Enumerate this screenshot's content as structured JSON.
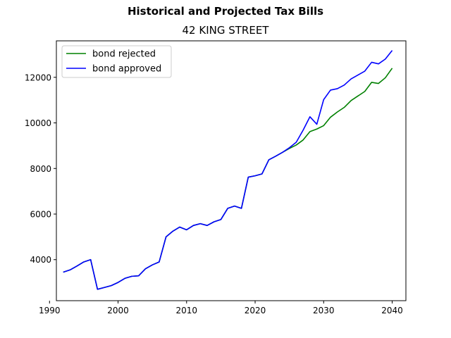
{
  "chart_data": {
    "type": "line",
    "title": "Historical and Projected Tax Bills",
    "subtitle": "42 KING STREET",
    "xlabel": "",
    "ylabel": "",
    "xlim": [
      1991,
      2042
    ],
    "ylim": [
      2200,
      13600
    ],
    "xticks": [
      1990,
      2000,
      2010,
      2020,
      2030,
      2040
    ],
    "yticks": [
      4000,
      6000,
      8000,
      10000,
      12000
    ],
    "xtick_labels": [
      "1990",
      "2000",
      "2010",
      "2020",
      "2030",
      "2040"
    ],
    "ytick_labels": [
      "4000",
      "6000",
      "8000",
      "10000",
      "12000"
    ],
    "grid": false,
    "legend_position": "top-left",
    "series": [
      {
        "name": "bond rejected",
        "color": "#008000",
        "x": [
          1992,
          1993,
          1994,
          1995,
          1996,
          1997,
          1998,
          1999,
          2000,
          2001,
          2002,
          2003,
          2004,
          2005,
          2006,
          2007,
          2008,
          2009,
          2010,
          2011,
          2012,
          2013,
          2014,
          2015,
          2016,
          2017,
          2018,
          2019,
          2020,
          2021,
          2022,
          2023,
          2024,
          2025,
          2026,
          2027,
          2028,
          2029,
          2030,
          2031,
          2032,
          2033,
          2034,
          2035,
          2036,
          2037,
          2038,
          2039,
          2040
        ],
        "y": [
          3450,
          3550,
          3720,
          3900,
          4000,
          2700,
          2780,
          2860,
          3000,
          3180,
          3270,
          3290,
          3600,
          3770,
          3900,
          5000,
          5250,
          5430,
          5310,
          5500,
          5580,
          5500,
          5660,
          5760,
          6250,
          6350,
          6250,
          7620,
          7680,
          7760,
          8380,
          8540,
          8710,
          8880,
          9030,
          9250,
          9620,
          9730,
          9880,
          10250,
          10480,
          10680,
          10980,
          11180,
          11380,
          11780,
          11730,
          11980,
          12400
        ]
      },
      {
        "name": "bond approved",
        "color": "#0000ff",
        "x": [
          1992,
          1993,
          1994,
          1995,
          1996,
          1997,
          1998,
          1999,
          2000,
          2001,
          2002,
          2003,
          2004,
          2005,
          2006,
          2007,
          2008,
          2009,
          2010,
          2011,
          2012,
          2013,
          2014,
          2015,
          2016,
          2017,
          2018,
          2019,
          2020,
          2021,
          2022,
          2023,
          2024,
          2025,
          2026,
          2027,
          2028,
          2029,
          2030,
          2031,
          2032,
          2033,
          2034,
          2035,
          2036,
          2037,
          2038,
          2039,
          2040
        ],
        "y": [
          3450,
          3550,
          3720,
          3900,
          4000,
          2700,
          2780,
          2860,
          3000,
          3180,
          3270,
          3290,
          3600,
          3770,
          3900,
          5000,
          5250,
          5430,
          5310,
          5500,
          5580,
          5500,
          5660,
          5760,
          6250,
          6350,
          6250,
          7620,
          7680,
          7760,
          8380,
          8540,
          8710,
          8910,
          9150,
          9680,
          10270,
          9940,
          11020,
          11440,
          11500,
          11660,
          11930,
          12100,
          12270,
          12660,
          12590,
          12800,
          13180
        ]
      }
    ]
  }
}
